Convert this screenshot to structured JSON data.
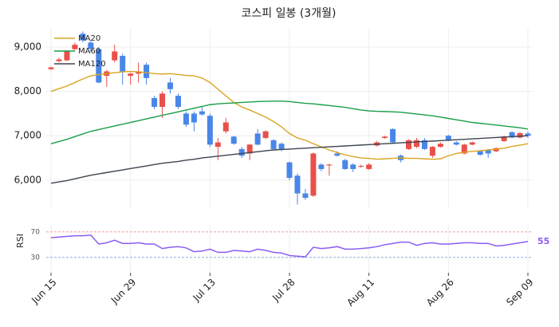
{
  "chart_data": [
    {
      "type": "candlestick",
      "title": "코스피 일봉 (3개월)",
      "categories": [
        "Jun 15",
        null,
        null,
        null,
        null,
        null,
        null,
        null,
        null,
        null,
        "Jun 29",
        null,
        null,
        null,
        null,
        null,
        null,
        null,
        null,
        null,
        "Jul 13",
        null,
        null,
        null,
        null,
        null,
        null,
        null,
        null,
        null,
        "Jul 28",
        null,
        null,
        null,
        null,
        null,
        null,
        null,
        null,
        null,
        "Aug 11",
        null,
        null,
        null,
        null,
        null,
        null,
        null,
        null,
        null,
        "Aug 26",
        null,
        null,
        null,
        null,
        null,
        null,
        null,
        null,
        null,
        "Sep 09"
      ],
      "open": [
        8500,
        8680,
        8700,
        8950,
        9300,
        9100,
        8950,
        8350,
        8700,
        8800,
        8350,
        8400,
        8600,
        7850,
        7650,
        8200,
        7900,
        7500,
        7500,
        7550,
        7450,
        6750,
        7100,
        6980,
        6700,
        6600,
        7050,
        6950,
        6900,
        6820,
        6400,
        6100,
        5700,
        5650,
        6350,
        6330,
        6600,
        6450,
        6350,
        6300,
        6250,
        6780,
        6950,
        7150,
        6550,
        6700,
        6750,
        6900,
        6550,
        6750,
        7000,
        6850,
        6600,
        6800,
        6650,
        6680,
        6650,
        6880,
        7080,
        6960,
        7050
      ],
      "high": [
        8560,
        8760,
        8920,
        9100,
        9350,
        9150,
        9000,
        8480,
        9050,
        8850,
        8420,
        8650,
        8650,
        7900,
        8000,
        8300,
        7950,
        7550,
        7550,
        7650,
        7500,
        6950,
        7400,
        7000,
        6750,
        6820,
        7150,
        7120,
        6920,
        6850,
        6420,
        6150,
        5800,
        6620,
        6380,
        6370,
        6650,
        6480,
        6380,
        6350,
        6380,
        6880,
        7000,
        7170,
        6580,
        6920,
        6950,
        6950,
        6770,
        6850,
        7020,
        6880,
        6820,
        6870,
        6680,
        6700,
        6740,
        7000,
        7100,
        7080,
        7100
      ],
      "low": [
        8480,
        8650,
        8680,
        8930,
        9100,
        8900,
        8180,
        8100,
        8650,
        8150,
        8150,
        8200,
        8150,
        7600,
        7400,
        7950,
        7600,
        7200,
        7100,
        7450,
        6750,
        6450,
        7050,
        6800,
        6500,
        6450,
        6780,
        6920,
        6680,
        6650,
        6000,
        5450,
        5550,
        5620,
        6200,
        6100,
        6530,
        6230,
        6180,
        6280,
        6230,
        6760,
        6930,
        6830,
        6400,
        6680,
        6720,
        6680,
        6500,
        6730,
        6880,
        6780,
        6580,
        6780,
        6550,
        6500,
        6630,
        6860,
        6940,
        6940,
        6950
      ],
      "close": [
        8540,
        8720,
        8900,
        9050,
        9150,
        8960,
        8200,
        8450,
        8900,
        8450,
        8400,
        8450,
        8300,
        7650,
        7950,
        8050,
        7650,
        7250,
        7300,
        7480,
        6800,
        6850,
        7300,
        6820,
        6550,
        6800,
        6800,
        7100,
        6700,
        6700,
        6050,
        5700,
        5600,
        6600,
        6250,
        6350,
        6550,
        6250,
        6250,
        6320,
        6350,
        6850,
        6980,
        6850,
        6450,
        6900,
        6900,
        6700,
        6750,
        6820,
        6900,
        6800,
        6800,
        6850,
        6570,
        6600,
        6720,
        6980,
        6960,
        7060,
        7000
      ],
      "up_color": "#e8504a",
      "down_color": "#4a86e8",
      "series": [
        {
          "name": "MA20",
          "color": "#d9a521",
          "values": [
            8000,
            8060,
            8120,
            8200,
            8280,
            8350,
            8380,
            8400,
            8420,
            8440,
            8450,
            8440,
            8420,
            8400,
            8390,
            8400,
            8380,
            8360,
            8350,
            8300,
            8200,
            8050,
            7900,
            7750,
            7650,
            7580,
            7500,
            7420,
            7320,
            7200,
            7050,
            6950,
            6900,
            6820,
            6750,
            6680,
            6620,
            6570,
            6530,
            6500,
            6490,
            6470,
            6480,
            6490,
            6500,
            6490,
            6490,
            6480,
            6470,
            6480,
            6550,
            6600,
            6630,
            6650,
            6660,
            6680,
            6700,
            6720,
            6760,
            6790,
            6820
          ]
        },
        {
          "name": "MA60",
          "color": "#1a9e48",
          "values": [
            6820,
            6870,
            6920,
            6980,
            7040,
            7100,
            7140,
            7180,
            7220,
            7260,
            7300,
            7340,
            7380,
            7420,
            7460,
            7500,
            7540,
            7580,
            7620,
            7660,
            7700,
            7720,
            7730,
            7740,
            7750,
            7760,
            7770,
            7775,
            7780,
            7780,
            7770,
            7750,
            7730,
            7720,
            7700,
            7680,
            7660,
            7640,
            7610,
            7580,
            7560,
            7550,
            7545,
            7540,
            7530,
            7510,
            7490,
            7470,
            7450,
            7420,
            7390,
            7360,
            7330,
            7300,
            7280,
            7260,
            7240,
            7220,
            7200,
            7180,
            7150
          ]
        },
        {
          "name": "MA120",
          "color": "#3d4450",
          "values": [
            5930,
            5960,
            5990,
            6030,
            6070,
            6110,
            6140,
            6170,
            6200,
            6230,
            6260,
            6290,
            6320,
            6350,
            6380,
            6400,
            6420,
            6450,
            6470,
            6500,
            6520,
            6540,
            6560,
            6580,
            6600,
            6620,
            6640,
            6660,
            6680,
            6690,
            6700,
            6710,
            6720,
            6730,
            6740,
            6750,
            6760,
            6770,
            6780,
            6790,
            6800,
            6810,
            6820,
            6830,
            6840,
            6850,
            6860,
            6870,
            6880,
            6890,
            6900,
            6910,
            6920,
            6930,
            6940,
            6950,
            6960,
            6970,
            6980,
            6990,
            7000
          ]
        }
      ],
      "ylim": [
        5350,
        9430
      ],
      "yticks": [
        {
          "value": 6000,
          "label": "6,000"
        },
        {
          "value": 7000,
          "label": "7,000"
        },
        {
          "value": 8000,
          "label": "8,000"
        },
        {
          "value": 9000,
          "label": "9,000"
        }
      ],
      "grid": true,
      "legend": "upper left"
    },
    {
      "type": "line",
      "ylabel": "RSI",
      "color": "#8b5cf6",
      "values": [
        61,
        62,
        63,
        64,
        64,
        65,
        51,
        53,
        57,
        52,
        52,
        53,
        51,
        51,
        44,
        46,
        47,
        45,
        39,
        40,
        43,
        38,
        38,
        41,
        40,
        39,
        43,
        41,
        38,
        37,
        33,
        32,
        31,
        46,
        44,
        45,
        47,
        43,
        43,
        44,
        45,
        47,
        50,
        52,
        54,
        54,
        49,
        52,
        53,
        51,
        51,
        52,
        53,
        53,
        52,
        52,
        48,
        49,
        51,
        53,
        55
      ],
      "ylim": [
        6,
        81
      ],
      "yticks": [
        30,
        70
      ],
      "tick_colors": [
        "#8aa8e0",
        "#e8a0a0"
      ]
    }
  ]
}
